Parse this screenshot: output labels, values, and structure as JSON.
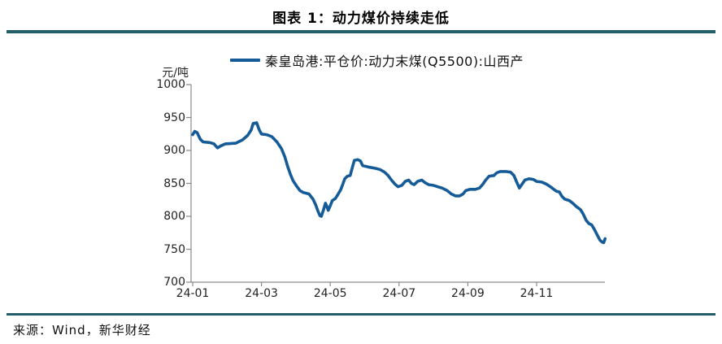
{
  "header": {
    "title": "图表 1：动力煤价持续走低"
  },
  "footer": {
    "source": "来源：Wind，新华财经"
  },
  "chart_data": {
    "type": "line",
    "title": "图表 1：动力煤价持续走低",
    "legend": "秦皇岛港:平仓价:动力末煤(Q5500):山西产",
    "ylabel": "元/吨",
    "ylim": [
      700,
      1000
    ],
    "y_ticks": [
      1000,
      950,
      900,
      850,
      800,
      750,
      700
    ],
    "x_ticks": [
      {
        "month": 0,
        "label": "24-01"
      },
      {
        "month": 2,
        "label": "24-03"
      },
      {
        "month": 4,
        "label": "24-05"
      },
      {
        "month": 6,
        "label": "24-07"
      },
      {
        "month": 8,
        "label": "24-09"
      },
      {
        "month": 10,
        "label": "24-11"
      }
    ],
    "x_axis_note": "month offset from 2024-01; axis spans Jan 2024 to end of Dec 2024",
    "grid": false,
    "legend_position": "top-center",
    "colors": {
      "line": "#155B97",
      "rule": "#235E68",
      "axis": "#8A8A8A"
    },
    "series": [
      {
        "name": "秦皇岛港:平仓价:动力末煤(Q5500):山西产",
        "unit": "元/吨",
        "points": [
          [
            0.0,
            924
          ],
          [
            0.06,
            929
          ],
          [
            0.13,
            927
          ],
          [
            0.22,
            917
          ],
          [
            0.3,
            913
          ],
          [
            0.5,
            912
          ],
          [
            0.62,
            910
          ],
          [
            0.72,
            904
          ],
          [
            0.82,
            907
          ],
          [
            0.95,
            910
          ],
          [
            1.25,
            911
          ],
          [
            1.45,
            916
          ],
          [
            1.6,
            923
          ],
          [
            1.7,
            931
          ],
          [
            1.76,
            941
          ],
          [
            1.86,
            942
          ],
          [
            1.93,
            932
          ],
          [
            2.0,
            925
          ],
          [
            2.15,
            924
          ],
          [
            2.3,
            921
          ],
          [
            2.45,
            913
          ],
          [
            2.58,
            903
          ],
          [
            2.68,
            890
          ],
          [
            2.76,
            876
          ],
          [
            2.84,
            864
          ],
          [
            2.92,
            854
          ],
          [
            3.02,
            846
          ],
          [
            3.12,
            839
          ],
          [
            3.22,
            836
          ],
          [
            3.38,
            834
          ],
          [
            3.5,
            826
          ],
          [
            3.58,
            817
          ],
          [
            3.64,
            808
          ],
          [
            3.7,
            801
          ],
          [
            3.74,
            800
          ],
          [
            3.8,
            809
          ],
          [
            3.86,
            820
          ],
          [
            3.9,
            815
          ],
          [
            3.94,
            809
          ],
          [
            4.0,
            816
          ],
          [
            4.06,
            824
          ],
          [
            4.15,
            827
          ],
          [
            4.22,
            833
          ],
          [
            4.3,
            840
          ],
          [
            4.36,
            848
          ],
          [
            4.42,
            857
          ],
          [
            4.5,
            861
          ],
          [
            4.58,
            862
          ],
          [
            4.64,
            874
          ],
          [
            4.7,
            885
          ],
          [
            4.8,
            886
          ],
          [
            4.88,
            884
          ],
          [
            4.94,
            877
          ],
          [
            5.1,
            875
          ],
          [
            5.3,
            873
          ],
          [
            5.45,
            871
          ],
          [
            5.58,
            867
          ],
          [
            5.68,
            862
          ],
          [
            5.78,
            855
          ],
          [
            5.88,
            849
          ],
          [
            5.97,
            845
          ],
          [
            6.08,
            847
          ],
          [
            6.18,
            853
          ],
          [
            6.28,
            855
          ],
          [
            6.36,
            850
          ],
          [
            6.44,
            848
          ],
          [
            6.54,
            853
          ],
          [
            6.66,
            855
          ],
          [
            6.76,
            851
          ],
          [
            6.86,
            848
          ],
          [
            7.0,
            847
          ],
          [
            7.12,
            845
          ],
          [
            7.25,
            843
          ],
          [
            7.4,
            839
          ],
          [
            7.52,
            834
          ],
          [
            7.64,
            831
          ],
          [
            7.76,
            831
          ],
          [
            7.86,
            834
          ],
          [
            7.94,
            839
          ],
          [
            8.06,
            841
          ],
          [
            8.22,
            841
          ],
          [
            8.34,
            843
          ],
          [
            8.44,
            849
          ],
          [
            8.52,
            855
          ],
          [
            8.62,
            861
          ],
          [
            8.76,
            862
          ],
          [
            8.84,
            866
          ],
          [
            8.94,
            868
          ],
          [
            9.1,
            868
          ],
          [
            9.24,
            867
          ],
          [
            9.34,
            862
          ],
          [
            9.42,
            852
          ],
          [
            9.5,
            843
          ],
          [
            9.58,
            849
          ],
          [
            9.66,
            855
          ],
          [
            9.78,
            857
          ],
          [
            9.9,
            856
          ],
          [
            10.0,
            853
          ],
          [
            10.15,
            852
          ],
          [
            10.28,
            849
          ],
          [
            10.4,
            845
          ],
          [
            10.5,
            841
          ],
          [
            10.58,
            838
          ],
          [
            10.66,
            837
          ],
          [
            10.74,
            830
          ],
          [
            10.82,
            826
          ],
          [
            10.95,
            824
          ],
          [
            11.05,
            820
          ],
          [
            11.15,
            815
          ],
          [
            11.28,
            810
          ],
          [
            11.36,
            803
          ],
          [
            11.44,
            794
          ],
          [
            11.52,
            789
          ],
          [
            11.6,
            787
          ],
          [
            11.68,
            780
          ],
          [
            11.76,
            772
          ],
          [
            11.84,
            764
          ],
          [
            11.9,
            761
          ],
          [
            11.95,
            760
          ],
          [
            11.99,
            766
          ]
        ]
      }
    ]
  }
}
